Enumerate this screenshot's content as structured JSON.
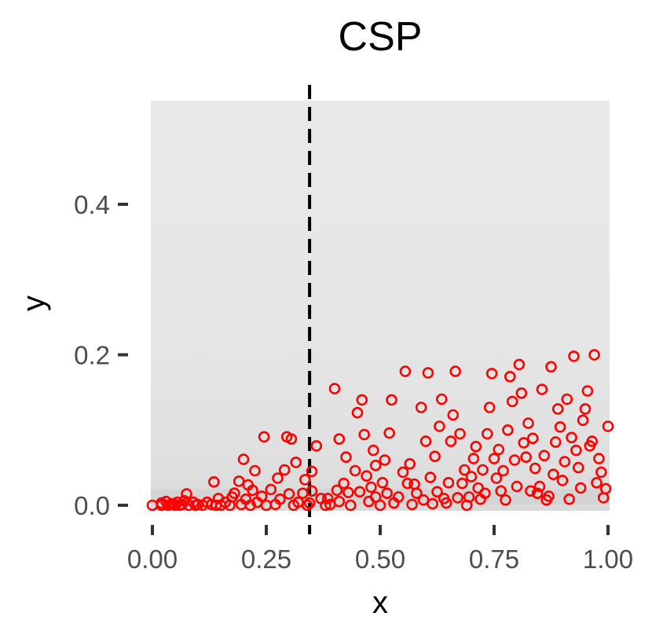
{
  "chart_data": {
    "type": "scatter",
    "title": "CSP",
    "xlabel": "x",
    "ylabel": "y",
    "xlim": [
      0,
      1
    ],
    "ylim": [
      -0.015,
      0.54
    ],
    "x_ticks": [
      0,
      0.25,
      0.5,
      0.75,
      1
    ],
    "x_tick_labels": [
      "0.00",
      "0.25",
      "0.50",
      "0.75",
      "1.00"
    ],
    "y_ticks": [
      0,
      0.2,
      0.4
    ],
    "y_tick_labels": [
      "0.0",
      "0.2",
      "0.4"
    ],
    "vline": {
      "x": 0.345,
      "style": "dashed",
      "color": "#000000"
    },
    "grid": false,
    "background": "#e8e8e8",
    "band_color": "#d2d2d2",
    "point_color": "#ff0000",
    "points": [
      [
        0.0,
        0.0
      ],
      [
        0.02,
        0.003
      ],
      [
        0.02,
        0.0
      ],
      [
        0.03,
        0.005
      ],
      [
        0.035,
        0.0
      ],
      [
        0.04,
        0.001
      ],
      [
        0.045,
        0.002
      ],
      [
        0.05,
        0.0
      ],
      [
        0.055,
        0.004
      ],
      [
        0.06,
        0.0
      ],
      [
        0.065,
        0.001
      ],
      [
        0.07,
        0.006
      ],
      [
        0.075,
        0.015
      ],
      [
        0.08,
        0.0
      ],
      [
        0.09,
        0.004
      ],
      [
        0.095,
        0.0
      ],
      [
        0.1,
        0.001
      ],
      [
        0.11,
        0.0
      ],
      [
        0.12,
        0.004
      ],
      [
        0.13,
        0.001
      ],
      [
        0.135,
        0.031
      ],
      [
        0.14,
        0.0
      ],
      [
        0.145,
        0.009
      ],
      [
        0.15,
        0.0
      ],
      [
        0.16,
        0.004
      ],
      [
        0.17,
        0.0
      ],
      [
        0.175,
        0.011
      ],
      [
        0.18,
        0.016
      ],
      [
        0.19,
        0.032
      ],
      [
        0.195,
        0.001
      ],
      [
        0.2,
        0.061
      ],
      [
        0.205,
        0.008
      ],
      [
        0.21,
        0.027
      ],
      [
        0.215,
        0.0
      ],
      [
        0.22,
        0.02
      ],
      [
        0.225,
        0.046
      ],
      [
        0.23,
        0.004
      ],
      [
        0.24,
        0.012
      ],
      [
        0.25,
        0.0
      ],
      [
        0.245,
        0.091
      ],
      [
        0.26,
        0.021
      ],
      [
        0.27,
        0.001
      ],
      [
        0.275,
        0.036
      ],
      [
        0.28,
        0.008
      ],
      [
        0.29,
        0.047
      ],
      [
        0.295,
        0.091
      ],
      [
        0.3,
        0.015
      ],
      [
        0.305,
        0.088
      ],
      [
        0.31,
        0.0
      ],
      [
        0.315,
        0.057
      ],
      [
        0.32,
        0.004
      ],
      [
        0.33,
        0.016
      ],
      [
        0.335,
        0.034
      ],
      [
        0.34,
        0.0
      ],
      [
        0.345,
        0.003
      ],
      [
        0.35,
        0.019
      ],
      [
        0.35,
        0.045
      ],
      [
        0.36,
        0.079
      ],
      [
        0.37,
        0.009
      ],
      [
        0.38,
        0.0
      ],
      [
        0.385,
        0.009
      ],
      [
        0.39,
        0.001
      ],
      [
        0.4,
        0.155
      ],
      [
        0.405,
        0.02
      ],
      [
        0.41,
        0.005
      ],
      [
        0.41,
        0.088
      ],
      [
        0.42,
        0.029
      ],
      [
        0.425,
        0.064
      ],
      [
        0.43,
        0.017
      ],
      [
        0.435,
        0.0
      ],
      [
        0.445,
        0.046
      ],
      [
        0.45,
        0.123
      ],
      [
        0.455,
        0.018
      ],
      [
        0.46,
        0.14
      ],
      [
        0.465,
        0.094
      ],
      [
        0.47,
        0.039
      ],
      [
        0.475,
        0.005
      ],
      [
        0.48,
        0.024
      ],
      [
        0.485,
        0.073
      ],
      [
        0.49,
        0.011
      ],
      [
        0.49,
        0.053
      ],
      [
        0.5,
        0.0
      ],
      [
        0.505,
        0.03
      ],
      [
        0.51,
        0.06
      ],
      [
        0.515,
        0.016
      ],
      [
        0.52,
        0.096
      ],
      [
        0.525,
        0.14
      ],
      [
        0.53,
        0.003
      ],
      [
        0.54,
        0.011
      ],
      [
        0.55,
        0.044
      ],
      [
        0.555,
        0.178
      ],
      [
        0.56,
        0.029
      ],
      [
        0.565,
        0.055
      ],
      [
        0.57,
        0.001
      ],
      [
        0.575,
        0.028
      ],
      [
        0.58,
        0.016
      ],
      [
        0.59,
        0.13
      ],
      [
        0.595,
        0.007
      ],
      [
        0.6,
        0.085
      ],
      [
        0.605,
        0.176
      ],
      [
        0.61,
        0.037
      ],
      [
        0.615,
        0.002
      ],
      [
        0.62,
        0.065
      ],
      [
        0.625,
        0.018
      ],
      [
        0.63,
        0.105
      ],
      [
        0.635,
        0.141
      ],
      [
        0.64,
        0.009
      ],
      [
        0.645,
        0.003
      ],
      [
        0.65,
        0.03
      ],
      [
        0.655,
        0.085
      ],
      [
        0.66,
        0.12
      ],
      [
        0.665,
        0.178
      ],
      [
        0.67,
        0.01
      ],
      [
        0.675,
        0.095
      ],
      [
        0.68,
        0.029
      ],
      [
        0.685,
        0.047
      ],
      [
        0.69,
        0.0
      ],
      [
        0.695,
        0.011
      ],
      [
        0.7,
        0.038
      ],
      [
        0.705,
        0.062
      ],
      [
        0.71,
        0.078
      ],
      [
        0.715,
        0.023
      ],
      [
        0.72,
        0.008
      ],
      [
        0.725,
        0.047
      ],
      [
        0.73,
        0.016
      ],
      [
        0.735,
        0.095
      ],
      [
        0.74,
        0.13
      ],
      [
        0.745,
        0.175
      ],
      [
        0.75,
        0.062
      ],
      [
        0.755,
        0.036
      ],
      [
        0.76,
        0.074
      ],
      [
        0.765,
        0.019
      ],
      [
        0.77,
        0.046
      ],
      [
        0.775,
        0.007
      ],
      [
        0.78,
        0.1
      ],
      [
        0.785,
        0.171
      ],
      [
        0.79,
        0.138
      ],
      [
        0.795,
        0.06
      ],
      [
        0.8,
        0.025
      ],
      [
        0.805,
        0.187
      ],
      [
        0.81,
        0.149
      ],
      [
        0.815,
        0.083
      ],
      [
        0.82,
        0.064
      ],
      [
        0.825,
        0.109
      ],
      [
        0.83,
        0.019
      ],
      [
        0.835,
        0.089
      ],
      [
        0.84,
        0.049
      ],
      [
        0.845,
        0.016
      ],
      [
        0.85,
        0.025
      ],
      [
        0.855,
        0.154
      ],
      [
        0.86,
        0.066
      ],
      [
        0.865,
        0.007
      ],
      [
        0.87,
        0.012
      ],
      [
        0.875,
        0.184
      ],
      [
        0.88,
        0.041
      ],
      [
        0.885,
        0.084
      ],
      [
        0.89,
        0.128
      ],
      [
        0.895,
        0.104
      ],
      [
        0.9,
        0.033
      ],
      [
        0.905,
        0.058
      ],
      [
        0.91,
        0.141
      ],
      [
        0.915,
        0.008
      ],
      [
        0.92,
        0.09
      ],
      [
        0.925,
        0.198
      ],
      [
        0.93,
        0.073
      ],
      [
        0.935,
        0.05
      ],
      [
        0.94,
        0.023
      ],
      [
        0.945,
        0.113
      ],
      [
        0.95,
        0.128
      ],
      [
        0.955,
        0.152
      ],
      [
        0.96,
        0.079
      ],
      [
        0.965,
        0.085
      ],
      [
        0.97,
        0.2
      ],
      [
        0.975,
        0.03
      ],
      [
        0.98,
        0.062
      ],
      [
        0.985,
        0.044
      ],
      [
        0.99,
        0.01
      ],
      [
        0.995,
        0.022
      ],
      [
        1.0,
        0.105
      ]
    ]
  }
}
